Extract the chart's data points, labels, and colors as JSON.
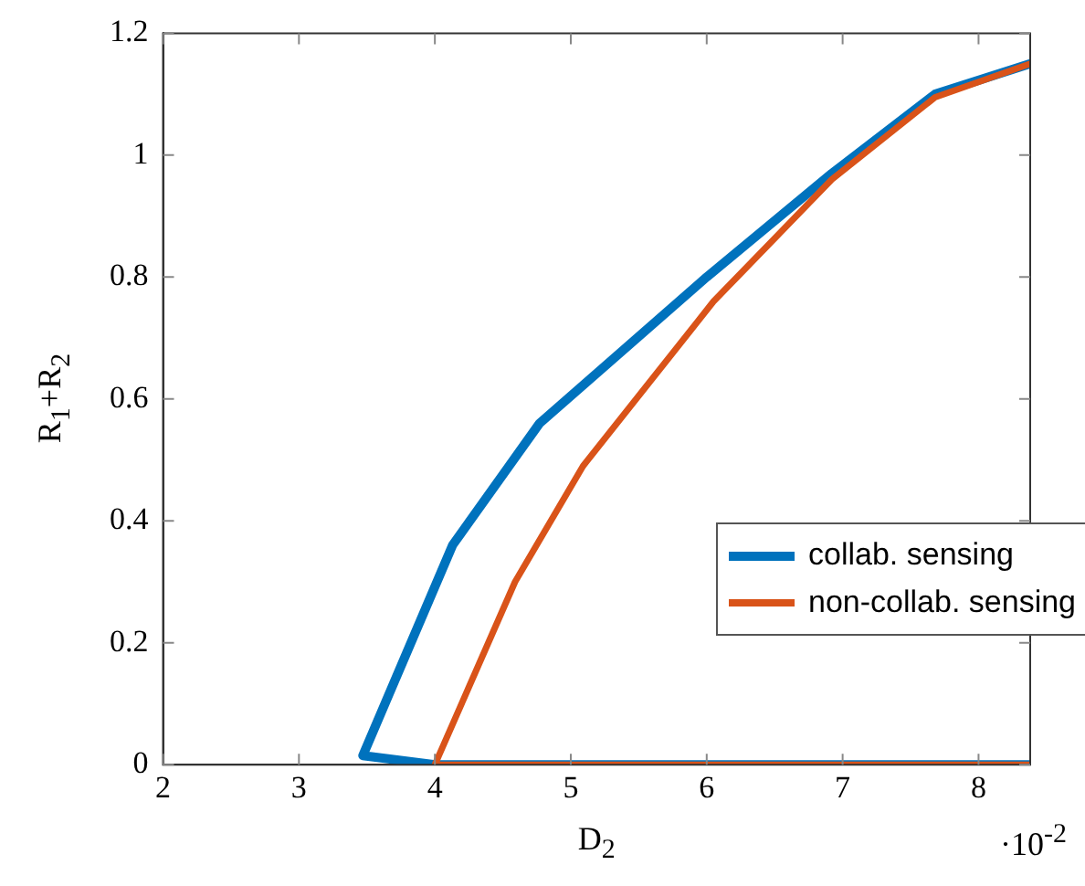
{
  "chart_data": {
    "type": "line",
    "xlabel": "D$_{2}$",
    "ylabel": "R$_{1}$+R$_{2}$",
    "xlim": [
      2,
      8.38
    ],
    "xticks": [
      2,
      3,
      4,
      5,
      6,
      7,
      8
    ],
    "ylim": [
      0,
      1.2
    ],
    "yticks": [
      0,
      0.2,
      0.4,
      0.6,
      0.8,
      1,
      1.2
    ],
    "grid": false,
    "legend": "bottom right",
    "marker": "none",
    "line_style": "solid",
    "annotations": [
      "·10$^{-2}$"
    ],
    "series": [
      {
        "name": "collab. sensing",
        "color": "#0072bd",
        "x": [
          8.38,
          4.0,
          3.47,
          4.13,
          4.77,
          6.0,
          6.92,
          7.68,
          8.38
        ],
        "values": [
          0,
          0,
          0.015,
          0.36,
          0.56,
          0.8,
          0.97,
          1.1,
          1.15
        ]
      },
      {
        "name": "non-collab. sensing",
        "color": "#d95319",
        "x": [
          8.38,
          4.0,
          4.59,
          5.09,
          6.05,
          6.92,
          7.68,
          8.38
        ],
        "values": [
          0,
          0,
          0.3,
          0.49,
          0.76,
          0.96,
          1.095,
          1.15
        ]
      }
    ]
  }
}
